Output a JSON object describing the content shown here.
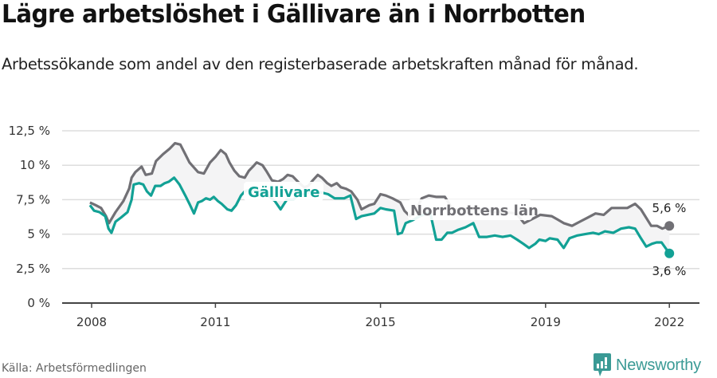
{
  "header": {
    "title": "Lägre arbetslöshet i Gällivare än i Norrbotten",
    "subtitle": "Arbetssökande som andel av den registerbaserade arbetskraften månad för månad."
  },
  "footer": {
    "source": "Källa: Arbetsförmedlingen",
    "brand": "Newsworthy",
    "brand_icon": "chart-bubble-icon"
  },
  "colors": {
    "gallivare": "#12a195",
    "norrbotten": "#717075",
    "band_fill": "#f4f4f5",
    "grid": "#dddddd",
    "axis": "#444444",
    "brand": "#3a9a95"
  },
  "chart_data": {
    "type": "line",
    "title": "Lägre arbetslöshet i Gällivare än i Norrbotten",
    "subtitle": "Arbetssökande som andel av den registerbaserade arbetskraften månad för månad.",
    "xlabel": "",
    "ylabel": "",
    "ylim": [
      0,
      12.5
    ],
    "yticks": [
      0,
      2.5,
      5,
      7.5,
      10,
      12.5
    ],
    "ytick_labels": [
      "0 %",
      "2,5 %",
      "5 %",
      "7,5 %",
      "10 %",
      "12,5 %"
    ],
    "xticks": [
      2008,
      2011,
      2015,
      2019,
      2022
    ],
    "xtick_labels": [
      "2008",
      "2011",
      "2015",
      "2019",
      "2022"
    ],
    "xlim": [
      2007.3,
      2022.7
    ],
    "grid": true,
    "legend": "inline labels",
    "annotations": [
      {
        "text": "Gällivare",
        "series": "Gällivare"
      },
      {
        "text": "Norrbottens län",
        "series": "Norrbottens län"
      },
      {
        "text": "5,6 %",
        "series": "Norrbottens län",
        "x": 2022.0,
        "y": 5.6
      },
      {
        "text": "3,6 %",
        "series": "Gällivare",
        "x": 2022.0,
        "y": 3.6
      }
    ],
    "series": [
      {
        "name": "Norrbottens län",
        "color": "#717075",
        "x": [
          2007.96,
          2008.1,
          2008.23,
          2008.35,
          2008.42,
          2008.58,
          2008.77,
          2008.91,
          2008.97,
          2009.06,
          2009.21,
          2009.31,
          2009.46,
          2009.56,
          2009.56,
          2009.73,
          2009.89,
          2010.02,
          2010.15,
          2010.27,
          2010.37,
          2010.58,
          2010.72,
          2010.87,
          2011.0,
          2011.13,
          2011.25,
          2011.34,
          2011.46,
          2011.58,
          2011.71,
          2011.81,
          2011.91,
          2012.0,
          2012.14,
          2012.23,
          2012.37,
          2012.52,
          2012.64,
          2012.75,
          2012.87,
          2013.0,
          2013.15,
          2013.25,
          2013.36,
          2013.48,
          2013.58,
          2013.71,
          2013.81,
          2013.94,
          2014.04,
          2014.16,
          2014.29,
          2014.44,
          2014.54,
          2014.73,
          2014.85,
          2015.0,
          2015.13,
          2015.29,
          2015.48,
          2015.58,
          2015.71,
          2015.87,
          2016.0,
          2016.17,
          2016.36,
          2016.56,
          2016.75,
          2016.94,
          2017.14,
          2017.33,
          2017.52,
          2017.77,
          2018.0,
          2018.29,
          2018.48,
          2018.68,
          2018.87,
          2019.15,
          2019.27,
          2019.44,
          2019.64,
          2019.83,
          2020.02,
          2020.21,
          2020.41,
          2020.6,
          2020.79,
          2020.98,
          2021.17,
          2021.31,
          2021.56,
          2021.7,
          2021.83,
          2022.0
        ],
        "values": [
          7.3,
          7.1,
          6.9,
          6.3,
          5.8,
          6.6,
          7.4,
          8.3,
          9.1,
          9.5,
          9.9,
          9.3,
          9.4,
          10.3,
          10.3,
          10.8,
          11.2,
          11.6,
          11.5,
          10.8,
          10.2,
          9.5,
          9.4,
          10.2,
          10.6,
          11.1,
          10.8,
          10.2,
          9.6,
          9.2,
          9.1,
          9.6,
          9.9,
          10.2,
          10.0,
          9.6,
          8.9,
          8.8,
          9.0,
          9.3,
          9.2,
          8.8,
          8.4,
          8.5,
          8.9,
          9.3,
          9.1,
          8.7,
          8.5,
          8.7,
          8.4,
          8.3,
          8.1,
          7.5,
          6.8,
          7.1,
          7.2,
          7.9,
          7.8,
          7.6,
          7.3,
          6.7,
          6.3,
          6.8,
          7.6,
          7.8,
          7.7,
          7.7,
          6.8,
          6.8,
          6.9,
          6.8,
          6.8,
          6.6,
          6.6,
          6.5,
          5.8,
          6.1,
          6.4,
          6.3,
          6.1,
          5.8,
          5.6,
          5.9,
          6.2,
          6.5,
          6.4,
          6.9,
          6.9,
          6.9,
          7.2,
          6.8,
          5.6,
          5.6,
          5.4,
          5.6
        ]
      },
      {
        "name": "Gällivare",
        "color": "#12a195",
        "x": [
          2007.96,
          2008.06,
          2008.19,
          2008.33,
          2008.41,
          2008.48,
          2008.58,
          2008.71,
          2008.87,
          2008.97,
          2009.02,
          2009.15,
          2009.25,
          2009.34,
          2009.44,
          2009.54,
          2009.67,
          2009.77,
          2009.87,
          2010.0,
          2010.13,
          2010.27,
          2010.37,
          2010.48,
          2010.58,
          2010.67,
          2010.77,
          2010.87,
          2010.96,
          2011.06,
          2011.15,
          2011.29,
          2011.39,
          2011.5,
          2011.62,
          2011.71,
          2011.81,
          2012.15,
          2012.44,
          2012.58,
          2012.73,
          2012.89,
          2013.02,
          2013.17,
          2013.31,
          2013.44,
          2013.6,
          2013.73,
          2013.89,
          2014.12,
          2014.27,
          2014.41,
          2014.54,
          2014.69,
          2014.85,
          2015.0,
          2015.13,
          2015.33,
          2015.42,
          2015.52,
          2015.61,
          2015.77,
          2015.95,
          2016.2,
          2016.35,
          2016.48,
          2016.62,
          2016.73,
          2016.87,
          2017.06,
          2017.25,
          2017.39,
          2017.58,
          2017.77,
          2017.96,
          2018.15,
          2018.31,
          2018.46,
          2018.6,
          2018.75,
          2018.85,
          2019.0,
          2019.1,
          2019.29,
          2019.44,
          2019.58,
          2019.77,
          2019.96,
          2020.15,
          2020.29,
          2020.44,
          2020.64,
          2020.83,
          2021.02,
          2021.17,
          2021.31,
          2021.44,
          2021.58,
          2021.69,
          2021.81,
          2022.0
        ],
        "values": [
          7.1,
          6.7,
          6.6,
          6.3,
          5.4,
          5.1,
          5.9,
          6.2,
          6.6,
          7.5,
          8.6,
          8.7,
          8.6,
          8.1,
          7.8,
          8.5,
          8.5,
          8.7,
          8.8,
          9.1,
          8.6,
          7.8,
          7.2,
          6.5,
          7.3,
          7.4,
          7.6,
          7.5,
          7.7,
          7.4,
          7.2,
          6.8,
          6.7,
          7.1,
          7.8,
          8.1,
          8.2,
          8.1,
          7.4,
          6.8,
          7.5,
          7.5,
          7.9,
          7.9,
          8.1,
          8.1,
          8.0,
          7.9,
          7.6,
          7.6,
          7.8,
          6.1,
          6.3,
          6.4,
          6.5,
          6.9,
          6.8,
          6.7,
          5.0,
          5.1,
          5.8,
          6.0,
          6.3,
          6.6,
          4.6,
          4.6,
          5.1,
          5.1,
          5.3,
          5.5,
          5.8,
          4.8,
          4.8,
          4.9,
          4.8,
          4.9,
          4.6,
          4.3,
          4.0,
          4.3,
          4.6,
          4.5,
          4.7,
          4.6,
          4.0,
          4.7,
          4.9,
          5.0,
          5.1,
          5.0,
          5.2,
          5.1,
          5.4,
          5.5,
          5.4,
          4.7,
          4.1,
          4.3,
          4.4,
          4.4,
          3.6
        ]
      }
    ]
  }
}
